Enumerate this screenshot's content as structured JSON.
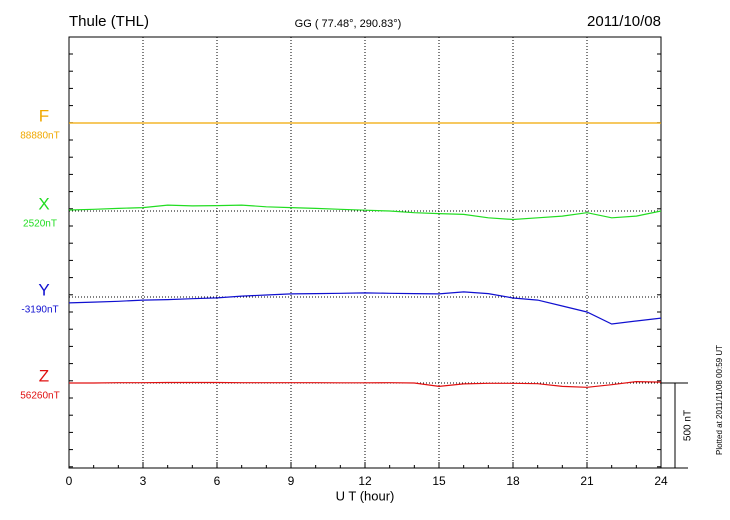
{
  "chart_data": {
    "type": "line",
    "title": "Thule (THL)",
    "subtitle": "GG ( 77.48°, 290.83°)",
    "date": "2011/10/08",
    "xlabel": "U T (hour)",
    "footnote": "Plotted at 2011/11/08 00:59 UT",
    "xlim": [
      0,
      24
    ],
    "xticks": [
      0,
      3,
      6,
      9,
      12,
      15,
      18,
      21,
      24
    ],
    "grid": true,
    "scale_bar": {
      "value": 500,
      "label": "500 nT"
    },
    "x": [
      0,
      1,
      2,
      3,
      4,
      5,
      6,
      7,
      8,
      9,
      10,
      11,
      12,
      13,
      14,
      15,
      16,
      17,
      18,
      19,
      20,
      21,
      22,
      23,
      24
    ],
    "series": [
      {
        "name": "F",
        "color": "#f0a800",
        "baseline": {
          "value": 88880,
          "label": "88880nT"
        },
        "values": [
          88880,
          88880,
          88880,
          88880,
          88880,
          88880,
          88880,
          88880,
          88880,
          88880,
          88880,
          88880,
          88880,
          88880,
          88880,
          88880,
          88880,
          88880,
          88880,
          88880,
          88880,
          88880,
          88880,
          88880,
          88880
        ]
      },
      {
        "name": "X",
        "color": "#22dd22",
        "baseline": {
          "value": 2520,
          "label": "2520nT"
        },
        "values": [
          2526,
          2530,
          2535,
          2540,
          2555,
          2550,
          2552,
          2555,
          2545,
          2540,
          2535,
          2530,
          2525,
          2520,
          2510,
          2505,
          2500,
          2480,
          2470,
          2480,
          2490,
          2510,
          2480,
          2490,
          2520
        ]
      },
      {
        "name": "Y",
        "color": "#1010d0",
        "baseline": {
          "value": -3190,
          "label": "-3190nT"
        },
        "values": [
          -3225,
          -3220,
          -3215,
          -3208,
          -3205,
          -3200,
          -3195,
          -3185,
          -3178,
          -3172,
          -3170,
          -3168,
          -3166,
          -3168,
          -3170,
          -3172,
          -3160,
          -3170,
          -3196,
          -3208,
          -3243,
          -3278,
          -3349,
          -3331,
          -3314
        ]
      },
      {
        "name": "Z",
        "color": "#e01010",
        "baseline": {
          "value": 56260,
          "label": "56260nT"
        },
        "values": [
          56260,
          56260,
          56262,
          56262,
          56263,
          56263,
          56263,
          56262,
          56262,
          56262,
          56262,
          56261,
          56261,
          56262,
          56260,
          56240,
          56255,
          56258,
          56258,
          56256,
          56240,
          56235,
          56250,
          56268,
          56265
        ]
      }
    ]
  }
}
